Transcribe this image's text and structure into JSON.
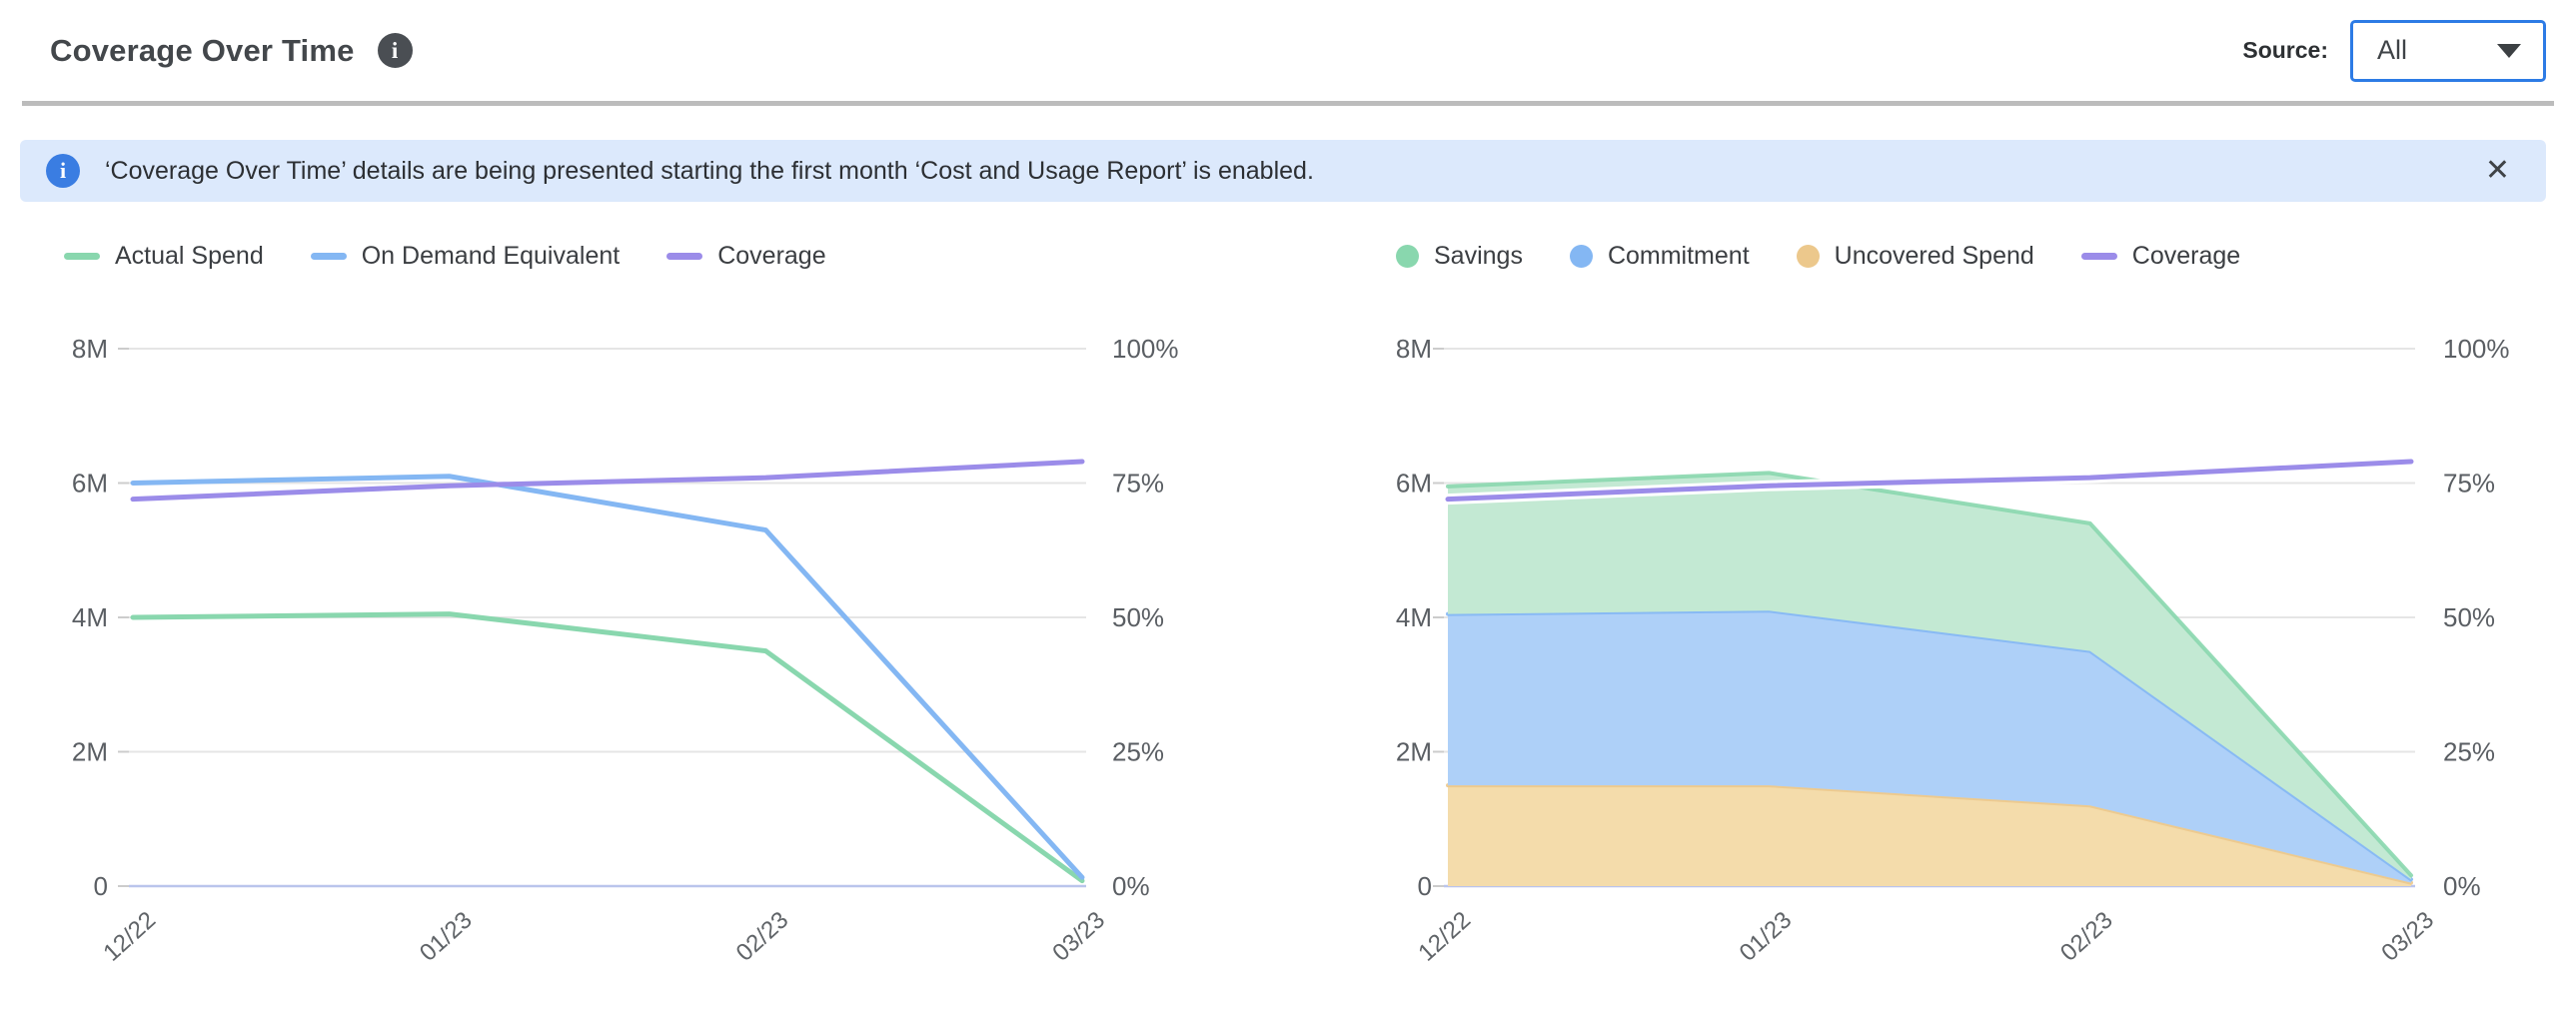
{
  "header": {
    "title": "Coverage Over Time",
    "source_label": "Source:",
    "source_value": "All"
  },
  "banner": {
    "text": "‘Coverage Over Time’ details are being presented starting the first month ‘Cost and Usage Report’ is enabled.",
    "close_label": "✕"
  },
  "colors": {
    "green": "#89d7ae",
    "blue": "#84b7f3",
    "purple": "#9b8ce9",
    "orange": "#ecc88c",
    "green_fill": "#c3e9d3",
    "blue_fill": "#aed0f8",
    "orange_fill": "#f4dcab",
    "grid": "#e5e5e5",
    "axis_line": "#bac4ec",
    "tick_mark": "#cccccc",
    "tick_text": "#5a5e63",
    "banner_bg": "#dce9fc",
    "banner_icon": "#3a7de2",
    "select_border": "#2d7be5"
  },
  "chart_data": [
    {
      "type": "line",
      "title": "",
      "categories": [
        "12/22",
        "01/23",
        "02/23",
        "03/23"
      ],
      "legend": [
        "Actual Spend",
        "On Demand Equivalent",
        "Coverage"
      ],
      "legend_position": "top-left",
      "grid": true,
      "left_axis": {
        "ticks": [
          "8M",
          "6M",
          "4M",
          "2M",
          "0"
        ],
        "min": 0,
        "max": 8000000,
        "unit": "M"
      },
      "right_axis": {
        "ticks": [
          "100%",
          "75%",
          "50%",
          "25%",
          "0%"
        ],
        "min": 0,
        "max": 100,
        "unit": "%"
      },
      "series": [
        {
          "name": "Actual Spend",
          "color": "green",
          "marker": "dash",
          "axis": "left",
          "values": [
            4000000,
            4050000,
            3500000,
            80000
          ]
        },
        {
          "name": "On Demand Equivalent",
          "color": "blue",
          "marker": "dash",
          "axis": "left",
          "values": [
            6000000,
            6100000,
            5300000,
            130000
          ]
        },
        {
          "name": "Coverage",
          "color": "purple",
          "marker": "dash",
          "axis": "right",
          "values": [
            72,
            74.5,
            76,
            79
          ]
        }
      ]
    },
    {
      "type": "area",
      "stacked": true,
      "title": "",
      "categories": [
        "12/22",
        "01/23",
        "02/23",
        "03/23"
      ],
      "legend": [
        "Savings",
        "Commitment",
        "Uncovered Spend",
        "Coverage"
      ],
      "legend_position": "top-left",
      "grid": true,
      "left_axis": {
        "ticks": [
          "8M",
          "6M",
          "4M",
          "2M",
          "0"
        ],
        "min": 0,
        "max": 8000000,
        "unit": "M"
      },
      "right_axis": {
        "ticks": [
          "100%",
          "75%",
          "50%",
          "25%",
          "0%"
        ],
        "min": 0,
        "max": 100,
        "unit": "%"
      },
      "series": [
        {
          "name": "Uncovered Spend",
          "color": "orange",
          "marker": "circle",
          "axis": "left",
          "stack": true,
          "values": [
            1500000,
            1500000,
            1200000,
            50000
          ]
        },
        {
          "name": "Commitment",
          "color": "blue",
          "marker": "circle",
          "axis": "left",
          "stack": true,
          "values": [
            2550000,
            2600000,
            2300000,
            50000
          ]
        },
        {
          "name": "Savings",
          "color": "green",
          "marker": "circle",
          "axis": "left",
          "stack": true,
          "values": [
            1900000,
            2050000,
            1900000,
            60000
          ]
        },
        {
          "name": "Coverage",
          "color": "purple",
          "marker": "dash",
          "axis": "right",
          "values": [
            72,
            74.5,
            76,
            79
          ]
        }
      ]
    }
  ]
}
